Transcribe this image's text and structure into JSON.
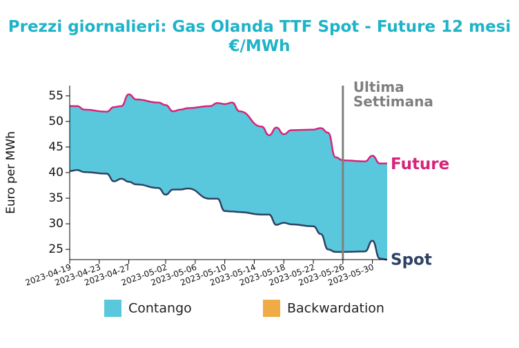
{
  "chart_data": {
    "type": "area",
    "title": "Prezzi giornalieri: Gas Olanda TTF Spot - Future 12 mesi",
    "subtitle": "€/MWh",
    "xlabel": "",
    "ylabel": "Euro per MWh",
    "ylim": [
      23,
      57
    ],
    "yticks": [
      25,
      30,
      35,
      40,
      45,
      50,
      55
    ],
    "xlim": [
      "2023-04-19",
      "2023-06-01"
    ],
    "xticks": [
      "2023-04-19",
      "2023-04-23",
      "2023-04-27",
      "2023-05-02",
      "2023-05-06",
      "2023-05-10",
      "2023-05-14",
      "2023-05-18",
      "2023-05-22",
      "2023-05-26",
      "2023-05-30"
    ],
    "grid": false,
    "dates": [
      "2023-04-19",
      "2023-04-20",
      "2023-04-21",
      "2023-04-24",
      "2023-04-25",
      "2023-04-26",
      "2023-04-27",
      "2023-04-28",
      "2023-05-01",
      "2023-05-02",
      "2023-05-03",
      "2023-05-04",
      "2023-05-05",
      "2023-05-08",
      "2023-05-09",
      "2023-05-10",
      "2023-05-11",
      "2023-05-12",
      "2023-05-15",
      "2023-05-16",
      "2023-05-17",
      "2023-05-18",
      "2023-05-19",
      "2023-05-22",
      "2023-05-23",
      "2023-05-24",
      "2023-05-25",
      "2023-05-26",
      "2023-05-29",
      "2023-05-30",
      "2023-05-31",
      "2023-06-01"
    ],
    "series": [
      {
        "name": "Future",
        "color": "#d6247a",
        "values": [
          53.0,
          53.0,
          52.3,
          51.9,
          52.8,
          53.0,
          55.3,
          54.3,
          53.7,
          53.2,
          52.0,
          52.3,
          52.6,
          53.0,
          53.6,
          53.4,
          53.7,
          52.0,
          49.0,
          47.3,
          48.8,
          47.5,
          48.3,
          48.4,
          48.7,
          47.8,
          43.0,
          42.4,
          42.2,
          43.3,
          41.8,
          41.8
        ]
      },
      {
        "name": "Spot",
        "color": "#2e4164",
        "values": [
          40.3,
          40.5,
          40.1,
          39.8,
          38.3,
          38.8,
          38.2,
          37.7,
          37.0,
          35.7,
          36.7,
          36.7,
          36.9,
          34.9,
          34.9,
          32.5,
          32.4,
          32.3,
          31.8,
          31.8,
          29.8,
          30.2,
          29.9,
          29.5,
          28.0,
          25.0,
          24.5,
          24.5,
          24.6,
          26.7,
          23.2,
          23.0
        ]
      }
    ],
    "fills": {
      "contango": "#5ac8dc",
      "backwardation": "#f0ab46"
    },
    "annotation": {
      "date": "2023-05-26",
      "color": "#7f7f7f",
      "lines": [
        "Ultima",
        "Settimana"
      ]
    },
    "legend": {
      "position": "bottom",
      "items": [
        {
          "label": "Contango",
          "color": "#5ac8dc"
        },
        {
          "label": "Backwardation",
          "color": "#f0ab46"
        }
      ]
    }
  }
}
